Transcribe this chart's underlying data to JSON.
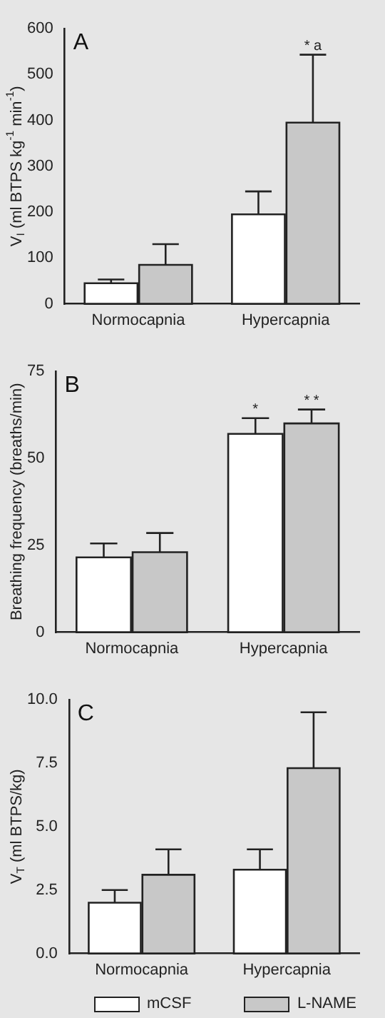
{
  "chart_data": [
    {
      "type": "bar",
      "title": "A",
      "ylabel": "V$_{I}$ (ml BTPS kg$^{-1}$ min$^{-1}$)",
      "categories": [
        "Normocapnia",
        "Hypercapnia"
      ],
      "series": [
        {
          "color": "#ffffff",
          "values": [
            45,
            195
          ],
          "errors": [
            [
              45,
              53
            ],
            [
              195,
              245
            ]
          ]
        },
        {
          "color": "#c8c8c8",
          "values": [
            85,
            395
          ],
          "errors": [
            [
              85,
              130
            ],
            [
              395,
              543
            ]
          ]
        }
      ],
      "ylim": [
        0,
        600
      ],
      "yticks": [
        0,
        100,
        200,
        300,
        400,
        500,
        600
      ],
      "grid": false,
      "legend": false,
      "annotations": [
        "* a"
      ]
    },
    {
      "type": "bar",
      "title": "B",
      "ylabel": "Breathing frequency (breaths/min)",
      "categories": [
        "Normocapnia",
        "Hypercapnia"
      ],
      "series": [
        {
          "color": "#ffffff",
          "values": [
            21.5,
            57
          ],
          "errors": [
            [
              21.5,
              25.5
            ],
            [
              57,
              61.5
            ]
          ]
        },
        {
          "color": "#c8c8c8",
          "values": [
            23,
            60
          ],
          "errors": [
            [
              23,
              28.5
            ],
            [
              60,
              64
            ]
          ]
        }
      ],
      "ylim": [
        0,
        75
      ],
      "yticks": [
        0,
        25,
        50,
        75
      ],
      "grid": false,
      "legend": false,
      "annotations": [
        "*",
        "* *"
      ]
    },
    {
      "type": "bar",
      "title": "C",
      "ylabel": "V$_{T}$ (ml BTPS/kg)",
      "categories": [
        "Normocapnia",
        "Hypercapnia"
      ],
      "series": [
        {
          "name": "mCSF",
          "color": "#ffffff",
          "values": [
            2.0,
            3.3
          ],
          "errors": [
            [
              2.0,
              2.5
            ],
            [
              3.3,
              4.1
            ]
          ]
        },
        {
          "name": "L-NAME",
          "color": "#c8c8c8",
          "values": [
            3.1,
            7.3
          ],
          "errors": [
            [
              3.1,
              4.1
            ],
            [
              7.3,
              9.5
            ]
          ]
        }
      ],
      "ylim": [
        0,
        10
      ],
      "yticks": [
        {
          "value": 0,
          "label": "0.0"
        },
        {
          "value": 2.5,
          "label": "2.5"
        },
        {
          "value": 5,
          "label": "5.0"
        },
        {
          "value": 7.5,
          "label": "7.5"
        },
        {
          "value": 10,
          "label": "10.0"
        }
      ],
      "grid": false,
      "legend": "bottom"
    }
  ]
}
